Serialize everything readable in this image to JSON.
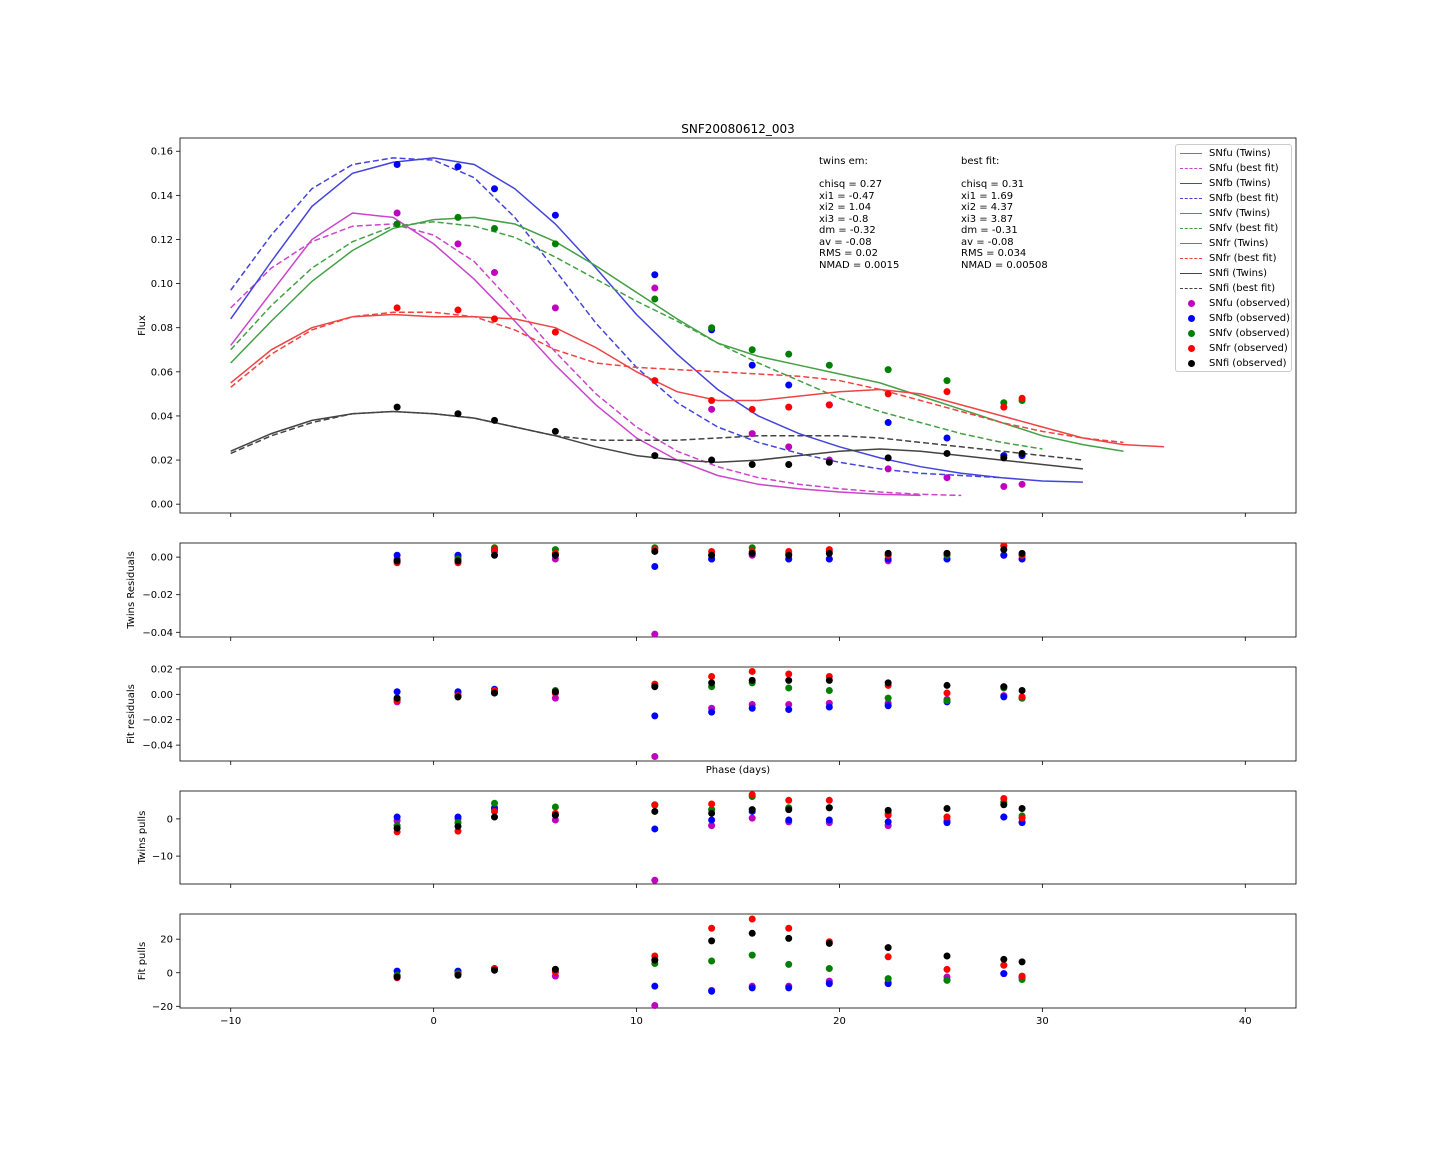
{
  "chart_data": {
    "title": "SNF20080612_003",
    "type": "line",
    "xlabel": "Phase (days)",
    "xlim": [
      -12.5,
      42.5
    ],
    "xticks": [
      -10,
      0,
      10,
      20,
      30,
      40
    ],
    "colors": {
      "SNfu": "#bf00bf",
      "SNfb": "#0000ff",
      "SNfv": "#008000",
      "SNfr": "#ff0000",
      "SNfi": "#000000"
    },
    "curve_colors": {
      "SNfu": "#cc44cc",
      "SNfb": "#4444dd",
      "SNfv": "#44a044",
      "SNfr": "#ee4444",
      "SNfi": "#444444"
    },
    "phases": [
      -1.8,
      1.2,
      3.0,
      6.0,
      10.9,
      13.7,
      15.7,
      17.5,
      19.5,
      22.4,
      25.3,
      28.1,
      29.0
    ],
    "curve_x": [
      -10,
      -8,
      -6,
      -4,
      -2,
      0,
      2,
      4,
      6,
      8,
      10,
      12,
      14,
      16,
      18,
      20,
      22,
      24,
      26,
      28,
      30,
      32,
      34,
      36,
      38,
      40
    ],
    "main": {
      "ylabel": "Flux",
      "ylim": [
        -0.004,
        0.166
      ],
      "yticks": [
        0.0,
        0.02,
        0.04,
        0.06,
        0.08,
        0.1,
        0.12,
        0.14,
        0.16
      ],
      "observed": {
        "SNfu": [
          0.132,
          0.118,
          0.105,
          0.089,
          0.098,
          0.043,
          0.032,
          0.026,
          0.02,
          0.016,
          0.012,
          0.008,
          0.009
        ],
        "SNfb": [
          0.154,
          0.153,
          0.143,
          0.131,
          0.104,
          0.079,
          0.063,
          0.054,
          0.045,
          0.037,
          0.03,
          0.022,
          0.022
        ],
        "SNfv": [
          0.127,
          0.13,
          0.125,
          0.118,
          0.093,
          0.08,
          0.07,
          0.068,
          0.063,
          0.061,
          0.056,
          0.046,
          0.047
        ],
        "SNfr": [
          0.089,
          0.088,
          0.084,
          0.078,
          0.056,
          0.047,
          0.043,
          0.044,
          0.045,
          0.05,
          0.051,
          0.044,
          0.048
        ],
        "SNfi": [
          0.044,
          0.041,
          0.038,
          0.033,
          0.022,
          0.02,
          0.018,
          0.018,
          0.019,
          0.021,
          0.023,
          0.021,
          0.023
        ]
      },
      "twins": {
        "SNfu": [
          0.072,
          0.096,
          0.12,
          0.132,
          0.13,
          0.118,
          0.102,
          0.083,
          0.063,
          0.045,
          0.03,
          0.02,
          0.013,
          0.009,
          0.007,
          0.0055,
          0.0045,
          0.004
        ],
        "SNfb": [
          0.084,
          0.11,
          0.135,
          0.15,
          0.155,
          0.157,
          0.154,
          0.143,
          0.127,
          0.107,
          0.086,
          0.068,
          0.052,
          0.04,
          0.032,
          0.026,
          0.021,
          0.017,
          0.014,
          0.012,
          0.0105,
          0.01
        ],
        "SNfv": [
          0.064,
          0.083,
          0.101,
          0.115,
          0.125,
          0.129,
          0.13,
          0.127,
          0.119,
          0.108,
          0.096,
          0.084,
          0.073,
          0.067,
          0.063,
          0.059,
          0.055,
          0.049,
          0.043,
          0.037,
          0.031,
          0.027,
          0.024
        ],
        "SNfr": [
          0.055,
          0.07,
          0.08,
          0.085,
          0.086,
          0.085,
          0.085,
          0.084,
          0.08,
          0.071,
          0.06,
          0.051,
          0.047,
          0.047,
          0.049,
          0.051,
          0.052,
          0.05,
          0.045,
          0.04,
          0.035,
          0.03,
          0.027,
          0.026
        ],
        "SNfi": [
          0.024,
          0.032,
          0.038,
          0.041,
          0.042,
          0.041,
          0.039,
          0.035,
          0.031,
          0.026,
          0.022,
          0.02,
          0.019,
          0.02,
          0.022,
          0.024,
          0.025,
          0.024,
          0.022,
          0.02,
          0.018,
          0.016
        ]
      },
      "bestfit": {
        "SNfu": [
          0.089,
          0.107,
          0.119,
          0.126,
          0.127,
          0.122,
          0.11,
          0.09,
          0.069,
          0.05,
          0.035,
          0.024,
          0.017,
          0.012,
          0.009,
          0.007,
          0.0055,
          0.0045,
          0.004
        ],
        "SNfb": [
          0.097,
          0.122,
          0.143,
          0.154,
          0.157,
          0.156,
          0.148,
          0.13,
          0.106,
          0.082,
          0.062,
          0.046,
          0.035,
          0.028,
          0.023,
          0.019,
          0.016,
          0.014,
          0.013,
          0.012
        ],
        "SNfv": [
          0.07,
          0.09,
          0.107,
          0.119,
          0.126,
          0.128,
          0.126,
          0.121,
          0.112,
          0.102,
          0.092,
          0.083,
          0.073,
          0.064,
          0.056,
          0.048,
          0.042,
          0.037,
          0.032,
          0.028,
          0.025
        ],
        "SNfr": [
          0.053,
          0.068,
          0.079,
          0.085,
          0.087,
          0.087,
          0.085,
          0.079,
          0.07,
          0.064,
          0.062,
          0.061,
          0.06,
          0.059,
          0.058,
          0.056,
          0.052,
          0.047,
          0.042,
          0.037,
          0.033,
          0.03,
          0.028
        ],
        "SNfi": [
          0.023,
          0.031,
          0.037,
          0.041,
          0.042,
          0.041,
          0.039,
          0.035,
          0.031,
          0.029,
          0.029,
          0.029,
          0.03,
          0.031,
          0.031,
          0.031,
          0.03,
          0.028,
          0.026,
          0.024,
          0.022,
          0.02
        ]
      }
    },
    "panels": [
      {
        "ylabel": "Twins Residuals",
        "ylim": [
          -0.0425,
          0.0075
        ],
        "yticks": [
          0.0,
          -0.02,
          -0.04
        ],
        "ytick_labels": [
          "0.00",
          "−0.02",
          "−0.04"
        ],
        "series": {
          "SNfu": [
            -0.001,
            0.0,
            0.003,
            -0.001,
            -0.041,
            -0.001,
            0.001,
            -0.001,
            -0.001,
            -0.002,
            -0.001,
            0.001,
            -0.001
          ],
          "SNfb": [
            0.001,
            0.001,
            0.004,
            0.001,
            -0.005,
            -0.001,
            0.002,
            -0.001,
            -0.001,
            -0.001,
            -0.001,
            0.001,
            -0.001
          ],
          "SNfv": [
            -0.002,
            -0.001,
            0.005,
            0.004,
            0.005,
            0.001,
            0.005,
            0.002,
            0.003,
            0.001,
            0.001,
            0.006,
            0.001
          ],
          "SNfr": [
            -0.003,
            -0.003,
            0.004,
            0.002,
            0.004,
            0.003,
            0.003,
            0.003,
            0.004,
            0.001,
            0.002,
            0.006,
            0.001
          ],
          "SNfi": [
            -0.002,
            -0.002,
            0.001,
            0.001,
            0.003,
            0.001,
            0.002,
            0.001,
            0.002,
            0.002,
            0.002,
            0.004,
            0.002
          ]
        }
      },
      {
        "ylabel": "Fit residuals",
        "ylim": [
          -0.0525,
          0.0215
        ],
        "yticks": [
          0.02,
          0.0,
          -0.02,
          -0.04
        ],
        "ytick_labels": [
          "0.02",
          "0.00",
          "−0.02",
          "−0.04"
        ],
        "series": {
          "SNfu": [
            -0.006,
            0.001,
            0.001,
            -0.003,
            -0.049,
            -0.011,
            -0.008,
            -0.008,
            -0.007,
            -0.007,
            -0.004,
            -0.001,
            -0.003
          ],
          "SNfb": [
            0.002,
            0.002,
            0.004,
            0.001,
            -0.017,
            -0.014,
            -0.011,
            -0.012,
            -0.01,
            -0.009,
            -0.006,
            -0.002,
            -0.003
          ],
          "SNfv": [
            -0.004,
            -0.002,
            0.002,
            0.003,
            0.007,
            0.006,
            0.009,
            0.005,
            0.003,
            -0.003,
            -0.005,
            0.005,
            -0.003
          ],
          "SNfr": [
            -0.005,
            -0.001,
            0.003,
            0.001,
            0.008,
            0.014,
            0.018,
            0.016,
            0.014,
            0.007,
            0.001,
            0.006,
            -0.002
          ],
          "SNfi": [
            -0.003,
            -0.002,
            0.001,
            0.002,
            0.006,
            0.009,
            0.011,
            0.011,
            0.011,
            0.009,
            0.007,
            0.006,
            0.003
          ]
        }
      },
      {
        "ylabel": "Twins pulls",
        "ylim": [
          -17.5,
          7.5
        ],
        "yticks": [
          0,
          -10
        ],
        "ytick_labels": [
          "0",
          "−10"
        ],
        "series": {
          "SNfu": [
            -0.5,
            0.0,
            2.5,
            -0.3,
            -16.5,
            -1.8,
            0.2,
            -0.8,
            -1.0,
            -1.8,
            -0.5,
            0.5,
            -0.8
          ],
          "SNfb": [
            0.5,
            0.5,
            3.0,
            1.0,
            -2.7,
            -0.3,
            2.0,
            -0.3,
            -0.3,
            -0.8,
            -1.0,
            0.5,
            -1.0
          ],
          "SNfv": [
            -1.8,
            -1.0,
            4.2,
            3.2,
            3.8,
            2.5,
            6.0,
            3.0,
            3.0,
            1.5,
            0.5,
            4.5,
            0.8
          ],
          "SNfr": [
            -3.5,
            -3.3,
            2.0,
            1.5,
            3.7,
            4.0,
            6.5,
            5.0,
            5.0,
            1.0,
            0.5,
            5.5,
            0.2
          ],
          "SNfi": [
            -2.5,
            -2.0,
            0.5,
            1.0,
            2.0,
            1.5,
            2.5,
            2.5,
            3.0,
            2.3,
            2.8,
            3.8,
            2.8
          ]
        }
      },
      {
        "ylabel": "Fit pulls",
        "ylim": [
          -21,
          35
        ],
        "yticks": [
          20,
          0,
          -20
        ],
        "ytick_labels": [
          "20",
          "0",
          "−20"
        ],
        "series": {
          "SNfu": [
            -2.0,
            0.5,
            2.0,
            -2.0,
            -19.5,
            -10.5,
            -8.0,
            -8.0,
            -5.0,
            -5.5,
            -2.5,
            -0.5,
            -2.5
          ],
          "SNfb": [
            1.0,
            1.0,
            2.5,
            0.5,
            -8.0,
            -11.0,
            -9.0,
            -9.0,
            -6.5,
            -6.5,
            -4.5,
            -0.5,
            -2.5
          ],
          "SNfv": [
            -1.5,
            -0.5,
            2.0,
            2.0,
            5.5,
            7.0,
            10.5,
            5.0,
            2.5,
            -3.5,
            -4.5,
            4.5,
            -4.0
          ],
          "SNfr": [
            -3.0,
            -1.0,
            2.5,
            0.5,
            10.0,
            26.5,
            32.0,
            26.5,
            18.5,
            9.5,
            2.0,
            4.5,
            -2.0
          ],
          "SNfi": [
            -2.5,
            -1.5,
            1.5,
            2.0,
            7.5,
            19.0,
            23.5,
            20.5,
            17.5,
            15.0,
            10.0,
            8.0,
            6.5
          ]
        }
      }
    ],
    "legend": [
      {
        "label": "SNfu (Twins)",
        "kind": "solid",
        "band": "SNfu"
      },
      {
        "label": "SNfu (best fit)",
        "kind": "dashed",
        "band": "SNfu"
      },
      {
        "label": "SNfb (Twins)",
        "kind": "solid",
        "band": "SNfb"
      },
      {
        "label": "SNfb (best fit)",
        "kind": "dashed",
        "band": "SNfb"
      },
      {
        "label": "SNfv (Twins)",
        "kind": "solid",
        "band": "SNfv"
      },
      {
        "label": "SNfv (best fit)",
        "kind": "dashed",
        "band": "SNfv"
      },
      {
        "label": "SNfr (Twins)",
        "kind": "solid",
        "band": "SNfr"
      },
      {
        "label": "SNfr (best fit)",
        "kind": "dashed",
        "band": "SNfr"
      },
      {
        "label": "SNfi (Twins)",
        "kind": "solid",
        "band": "SNfi"
      },
      {
        "label": "SNfi (best fit)",
        "kind": "dashed",
        "band": "SNfi"
      },
      {
        "label": "SNfu (observed)",
        "kind": "marker",
        "band": "SNfu"
      },
      {
        "label": "SNfb (observed)",
        "kind": "marker",
        "band": "SNfb"
      },
      {
        "label": "SNfv (observed)",
        "kind": "marker",
        "band": "SNfv"
      },
      {
        "label": "SNfr (observed)",
        "kind": "marker",
        "band": "SNfr"
      },
      {
        "label": "SNfi (observed)",
        "kind": "marker",
        "band": "SNfi"
      }
    ],
    "annotations": {
      "twins": "twins em:\n\nchisq = 0.27\nxi1 = -0.47\nxi2 = 1.04\nxi3 = -0.8\ndm = -0.32\nav = -0.08\nRMS = 0.02\nNMAD = 0.0015",
      "bestfit": "best fit:\n\nchisq = 0.31\nxi1 = 1.69\nxi2 = 4.37\nxi3 = 3.87\ndm = -0.31\nav = -0.08\nRMS = 0.034\nNMAD = 0.00508"
    }
  }
}
